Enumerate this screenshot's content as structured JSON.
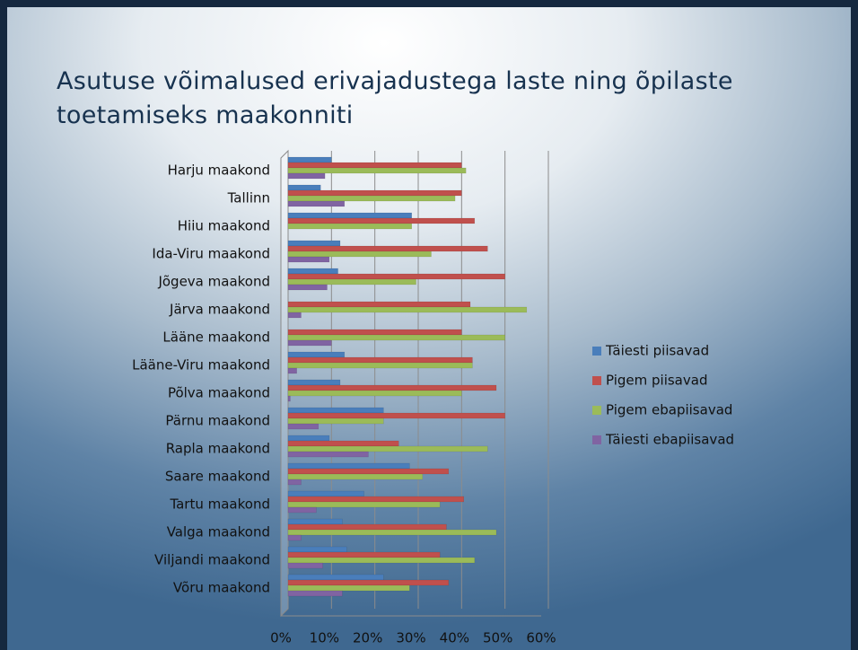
{
  "chart_data": {
    "type": "hbar",
    "title": "Asutuse võimalused erivajadustega laste ning õpilaste toetamiseks maakonniti",
    "categories": [
      "Harju maakond",
      "Tallinn",
      "Hiiu maakond",
      "Ida-Viru maakond",
      "Jõgeva maakond",
      "Järva maakond",
      "Lääne maakond",
      "Lääne-Viru maakond",
      "Põlva maakond",
      "Pärnu maakond",
      "Rapla maakond",
      "Saare maakond",
      "Tartu maakond",
      "Valga maakond",
      "Viljandi maakond",
      "Võru maakond"
    ],
    "series": [
      {
        "name": "Täiesti piisavad",
        "color": "#4a7ebb",
        "values": [
          10,
          7.5,
          28.5,
          12,
          11.5,
          0,
          0,
          13,
          12,
          22,
          9.5,
          28,
          17.5,
          12.5,
          13.5,
          22
        ]
      },
      {
        "name": "Pigem piisavad",
        "color": "#c0504d",
        "values": [
          40,
          40,
          43,
          46,
          50,
          42,
          40,
          42.5,
          48,
          50,
          25.5,
          37,
          40.5,
          36.5,
          35,
          37
        ]
      },
      {
        "name": "Pigem ebapiisavad",
        "color": "#9bbb59",
        "values": [
          41,
          38.5,
          28.5,
          33,
          29.5,
          55,
          50,
          42.5,
          40,
          22,
          46,
          31,
          35,
          48,
          43,
          28
        ]
      },
      {
        "name": "Täiesti ebapiisavad",
        "color": "#8064a2",
        "values": [
          8.5,
          13,
          0,
          9.5,
          9,
          3,
          10,
          2,
          0.5,
          7,
          18.5,
          3,
          6.5,
          3,
          8,
          12.5
        ]
      }
    ],
    "xlim": [
      0,
      60
    ],
    "xticks": [
      {
        "value": 0,
        "label": "0%"
      },
      {
        "value": 10,
        "label": "10%"
      },
      {
        "value": 20,
        "label": "20%"
      },
      {
        "value": 30,
        "label": "30%"
      },
      {
        "value": 40,
        "label": "40%"
      },
      {
        "value": 50,
        "label": "50%"
      },
      {
        "value": 60,
        "label": "60%"
      }
    ],
    "grid": true,
    "legend": "right"
  }
}
